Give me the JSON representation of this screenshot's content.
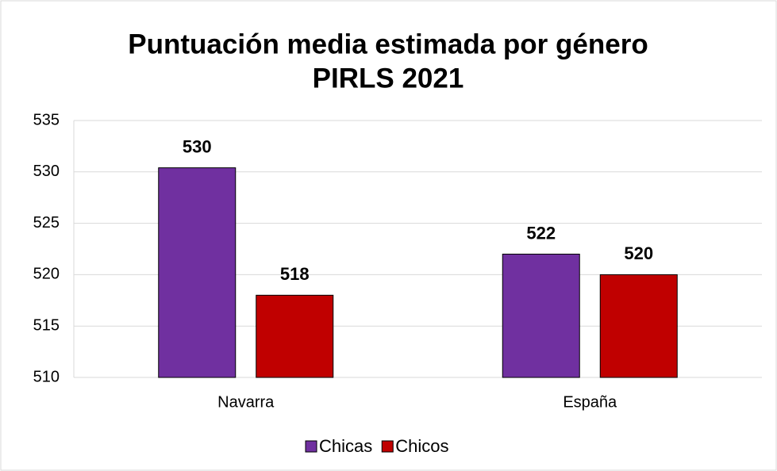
{
  "chart_data": {
    "type": "bar",
    "title": "Puntuación media estimada por género",
    "subtitle": "PIRLS 2021",
    "categories": [
      "Navarra",
      "España"
    ],
    "series": [
      {
        "name": "Chicas",
        "color": "#7030a0",
        "values": [
          530.4,
          522
        ],
        "value_labels": [
          "530",
          "522"
        ]
      },
      {
        "name": "Chicos",
        "color": "#c00000",
        "values": [
          518,
          520
        ]
      }
    ],
    "ylim": [
      510,
      535
    ],
    "yticks": [
      510,
      515,
      520,
      525,
      530,
      535
    ],
    "grid": true,
    "legend": "bottom"
  }
}
